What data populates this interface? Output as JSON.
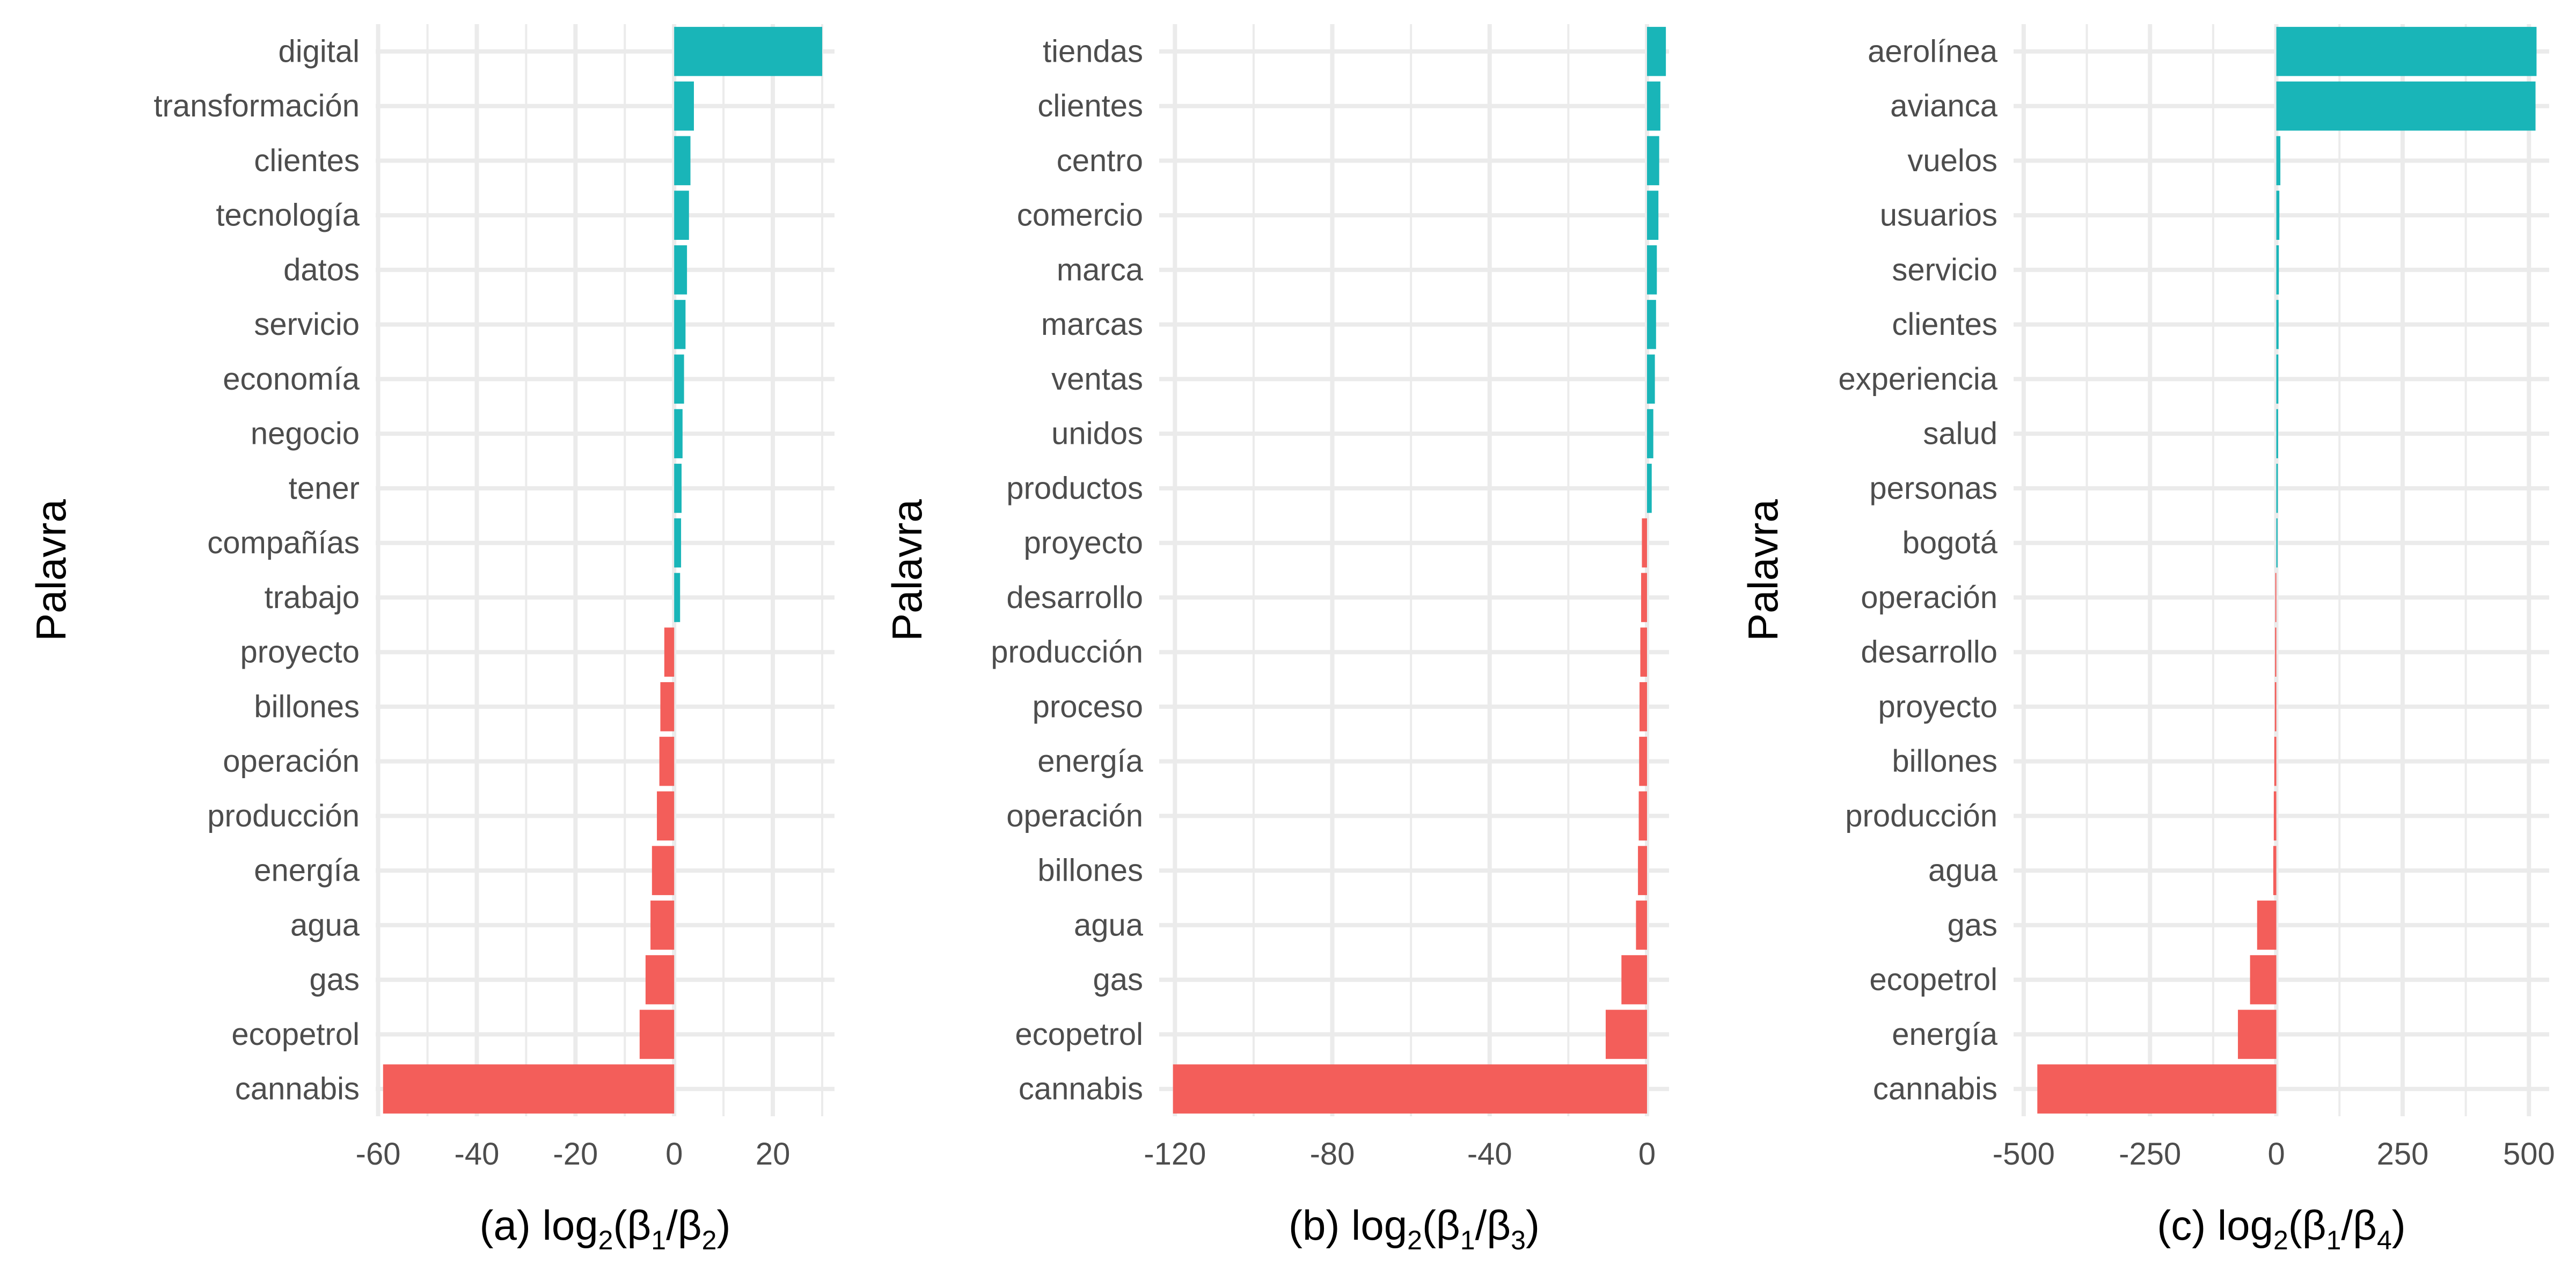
{
  "chart_data": [
    {
      "type": "bar",
      "orientation": "horizontal",
      "panel_label": "(a)",
      "ylabel": "Palavra",
      "xlabel": {
        "prefix": "(a) log",
        "log_base": "2",
        "open": "(β",
        "num_sub": "1",
        "slash": "/β",
        "den_sub": "2",
        "close": ")"
      },
      "xlim": [
        -60.5,
        32.5
      ],
      "xticks": [
        -60,
        -40,
        -20,
        0,
        20
      ],
      "xtick_labels": [
        "-60",
        "-40",
        "-20",
        "0",
        "20"
      ],
      "grid": true,
      "categories": [
        "digital",
        "transformación",
        "clientes",
        "tecnología",
        "datos",
        "servicio",
        "economía",
        "negocio",
        "tener",
        "compañías",
        "trabajo",
        "proyecto",
        "billones",
        "operación",
        "producción",
        "energía",
        "agua",
        "gas",
        "ecopetrol",
        "cannabis"
      ],
      "values": [
        30,
        4,
        3.3,
        3,
        2.6,
        2.3,
        2,
        1.7,
        1.5,
        1.4,
        1.2,
        -2,
        -2.8,
        -3,
        -3.5,
        -4.5,
        -4.8,
        -5.8,
        -7,
        -59
      ]
    },
    {
      "type": "bar",
      "orientation": "horizontal",
      "panel_label": "(b)",
      "ylabel": "Palavra",
      "xlabel": {
        "prefix": "(b) log",
        "log_base": "2",
        "open": "(β",
        "num_sub": "1",
        "slash": "/β",
        "den_sub": "3",
        "close": ")"
      },
      "xlim": [
        -124,
        5.6
      ],
      "xticks": [
        -120,
        -80,
        -40,
        0
      ],
      "xtick_labels": [
        "-120",
        "-80",
        "-40",
        "0"
      ],
      "grid": true,
      "categories": [
        "tiendas",
        "clientes",
        "centro",
        "comercio",
        "marca",
        "marcas",
        "ventas",
        "unidos",
        "productos",
        "proyecto",
        "desarrollo",
        "producción",
        "proceso",
        "energía",
        "operación",
        "billones",
        "agua",
        "gas",
        "ecopetrol",
        "cannabis"
      ],
      "values": [
        4.8,
        3.4,
        3.1,
        2.9,
        2.5,
        2.3,
        2.0,
        1.6,
        1.2,
        -1.3,
        -1.5,
        -1.7,
        -1.9,
        -2.0,
        -2.1,
        -2.3,
        -2.8,
        -6.5,
        -10.5,
        -120.5
      ]
    },
    {
      "type": "bar",
      "orientation": "horizontal",
      "panel_label": "(c)",
      "ylabel": "Palavra",
      "xlabel": {
        "prefix": "(c) log",
        "log_base": "2",
        "open": "(β",
        "num_sub": "1",
        "slash": "/β",
        "den_sub": "4",
        "close": ")"
      },
      "xlim": [
        -520,
        540
      ],
      "xticks": [
        -500,
        -250,
        0,
        250,
        500
      ],
      "xtick_labels": [
        "-500",
        "-250",
        "0",
        "250",
        "500"
      ],
      "grid": true,
      "categories": [
        "aerolínea",
        "avianca",
        "vuelos",
        "usuarios",
        "servicio",
        "clientes",
        "experiencia",
        "salud",
        "personas",
        "bogotá",
        "operación",
        "desarrollo",
        "proyecto",
        "billones",
        "producción",
        "agua",
        "gas",
        "ecopetrol",
        "energía",
        "cannabis"
      ],
      "values": [
        515,
        513,
        8,
        6,
        5,
        4.5,
        4,
        3.5,
        3,
        2.5,
        -2,
        -2.5,
        -3,
        -4,
        -5,
        -6,
        -38,
        -52,
        -76,
        -473
      ]
    }
  ],
  "colors": {
    "positive": "#19b5b8",
    "negative": "#f35e5a",
    "grid": "#ebebeb",
    "tick_text": "#4d4d4d",
    "title_text": "#000000",
    "background": "#ffffff"
  }
}
